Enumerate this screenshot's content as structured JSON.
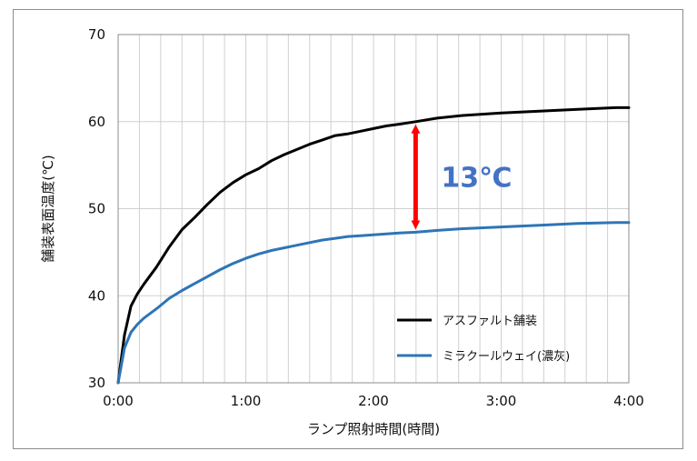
{
  "chart_data": {
    "type": "line",
    "title": "",
    "xlabel": "ランプ照射時間(時間)",
    "ylabel": "舗装表面温度(℃)",
    "xlim": [
      0,
      4
    ],
    "ylim": [
      30,
      70
    ],
    "x_ticks": [
      0,
      1,
      2,
      3,
      4
    ],
    "x_tick_labels": [
      "0:00",
      "1:00",
      "2:00",
      "3:00",
      "4:00"
    ],
    "y_ticks": [
      30,
      40,
      50,
      60,
      70
    ],
    "y_tick_labels": [
      "30",
      "40",
      "50",
      "60",
      "70"
    ],
    "x_minor_step": 0.1667,
    "grid": true,
    "legend_position": "bottom-right",
    "series": [
      {
        "name": "アスファルト舗装",
        "color": "#000000",
        "x": [
          0,
          0.05,
          0.1,
          0.15,
          0.2,
          0.3,
          0.4,
          0.5,
          0.6,
          0.7,
          0.8,
          0.9,
          1.0,
          1.1,
          1.2,
          1.3,
          1.4,
          1.5,
          1.6,
          1.7,
          1.8,
          1.9,
          2.0,
          2.1,
          2.2,
          2.33,
          2.5,
          2.7,
          3.0,
          3.3,
          3.6,
          3.9,
          4.0
        ],
        "y": [
          30,
          35.5,
          38.8,
          40.2,
          41.3,
          43.3,
          45.6,
          47.6,
          49.0,
          50.5,
          51.9,
          53.0,
          53.9,
          54.6,
          55.5,
          56.2,
          56.8,
          57.4,
          57.9,
          58.4,
          58.6,
          58.9,
          59.2,
          59.5,
          59.7,
          60.0,
          60.4,
          60.7,
          61.0,
          61.2,
          61.4,
          61.6,
          61.6
        ]
      },
      {
        "name": "ミラクールウェイ(濃灰)",
        "color": "#2e75b6",
        "x": [
          0,
          0.05,
          0.1,
          0.15,
          0.2,
          0.3,
          0.4,
          0.5,
          0.6,
          0.7,
          0.8,
          0.9,
          1.0,
          1.1,
          1.2,
          1.3,
          1.4,
          1.5,
          1.6,
          1.7,
          1.8,
          1.9,
          2.0,
          2.1,
          2.2,
          2.33,
          2.5,
          2.7,
          3.0,
          3.3,
          3.6,
          3.9,
          4.0
        ],
        "y": [
          30,
          34.0,
          35.8,
          36.7,
          37.4,
          38.5,
          39.7,
          40.6,
          41.4,
          42.2,
          43.0,
          43.7,
          44.3,
          44.8,
          45.2,
          45.5,
          45.8,
          46.1,
          46.4,
          46.6,
          46.8,
          46.9,
          47.0,
          47.1,
          47.2,
          47.3,
          47.5,
          47.7,
          47.9,
          48.1,
          48.3,
          48.4,
          48.4
        ]
      }
    ],
    "annotations": [
      {
        "text": "13℃",
        "color": "#4472c4",
        "arrow_color": "#ff0000",
        "arrow_x": 2.33,
        "arrow_from_y": 47.3,
        "arrow_to_y": 60.0
      }
    ]
  }
}
